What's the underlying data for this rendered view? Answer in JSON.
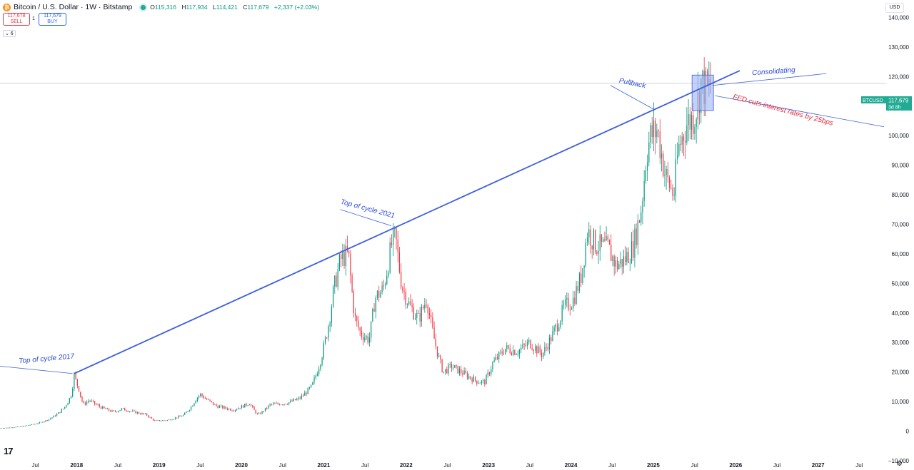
{
  "header": {
    "coin_symbol": "₿",
    "title": "Bitcoin / U.S. Dollar · 1W · Bitstamp",
    "ohlc": [
      {
        "k": "O",
        "v": "115,316"
      },
      {
        "k": "H",
        "v": "117,934"
      },
      {
        "k": "L",
        "v": "114,421"
      },
      {
        "k": "C",
        "v": "117,679"
      },
      {
        "k": "",
        "v": "+2,337 (+2.03%)"
      }
    ]
  },
  "trade": {
    "sell_price": "117,678",
    "sell_label": "SELL",
    "spread": "1",
    "buy_price": "117,679",
    "buy_label": "BUY"
  },
  "collapse_label": "⌄ 6",
  "currency": "USD",
  "logo": "17",
  "settings_icon": "gear-icon",
  "price_tag": {
    "symbol": "BTCUSD",
    "price": "117,679",
    "countdown": "3d 8h",
    "color": "#22ab94"
  },
  "colors": {
    "up": "#089981",
    "down": "#f23645",
    "line": "#3d5ee0",
    "box": "#9fb2f5"
  },
  "chart_data": {
    "type": "candlestick",
    "symbol": "BTCUSD",
    "interval": "1W",
    "y_axis": {
      "labels": [
        "140,000",
        "130,000",
        "120,000",
        "110,000",
        "100,000",
        "90,000",
        "80,000",
        "70,000",
        "60,000",
        "50,000",
        "40,000",
        "30,000",
        "20,000",
        "10,000",
        "0",
        "−10,000"
      ],
      "values": [
        140000,
        130000,
        120000,
        110000,
        100000,
        90000,
        80000,
        70000,
        60000,
        50000,
        40000,
        30000,
        20000,
        10000,
        0,
        -10000
      ],
      "range": [
        -10000,
        143000
      ]
    },
    "x_axis": {
      "ticks": [
        {
          "label": "Jul",
          "t": 2017.5,
          "year": false
        },
        {
          "label": "2018",
          "t": 2018,
          "year": true
        },
        {
          "label": "Jul",
          "t": 2018.5,
          "year": false
        },
        {
          "label": "2019",
          "t": 2019,
          "year": true
        },
        {
          "label": "Jul",
          "t": 2019.5,
          "year": false
        },
        {
          "label": "2020",
          "t": 2020,
          "year": true
        },
        {
          "label": "Jul",
          "t": 2020.5,
          "year": false
        },
        {
          "label": "2021",
          "t": 2021,
          "year": true
        },
        {
          "label": "Jul",
          "t": 2021.5,
          "year": false
        },
        {
          "label": "2022",
          "t": 2022,
          "year": true
        },
        {
          "label": "Jul",
          "t": 2022.5,
          "year": false
        },
        {
          "label": "2023",
          "t": 2023,
          "year": true
        },
        {
          "label": "Jul",
          "t": 2023.5,
          "year": false
        },
        {
          "label": "2024",
          "t": 2024,
          "year": true
        },
        {
          "label": "Jul",
          "t": 2024.5,
          "year": false
        },
        {
          "label": "2025",
          "t": 2025,
          "year": true
        },
        {
          "label": "Jul",
          "t": 2025.5,
          "year": false
        },
        {
          "label": "2026",
          "t": 2026,
          "year": true
        },
        {
          "label": "Jul",
          "t": 2026.5,
          "year": false
        },
        {
          "label": "2027",
          "t": 2027,
          "year": true
        },
        {
          "label": "Jul",
          "t": 2027.5,
          "year": false
        }
      ],
      "range": [
        2017.07,
        2027.8
      ]
    },
    "price_path": [
      [
        2017.07,
        1000
      ],
      [
        2017.3,
        1500
      ],
      [
        2017.5,
        2500
      ],
      [
        2017.62,
        3500
      ],
      [
        2017.75,
        5500
      ],
      [
        2017.85,
        8000
      ],
      [
        2017.93,
        12000
      ],
      [
        2017.97,
        19000
      ],
      [
        2018.03,
        14000
      ],
      [
        2018.08,
        9000
      ],
      [
        2018.15,
        10500
      ],
      [
        2018.3,
        8000
      ],
      [
        2018.45,
        6500
      ],
      [
        2018.55,
        7500
      ],
      [
        2018.7,
        6500
      ],
      [
        2018.85,
        5500
      ],
      [
        2018.95,
        3500
      ],
      [
        2019.1,
        3700
      ],
      [
        2019.3,
        5500
      ],
      [
        2019.45,
        11000
      ],
      [
        2019.5,
        12500
      ],
      [
        2019.7,
        8500
      ],
      [
        2019.9,
        7200
      ],
      [
        2020.1,
        9500
      ],
      [
        2020.2,
        5500
      ],
      [
        2020.35,
        9000
      ],
      [
        2020.55,
        9500
      ],
      [
        2020.7,
        11000
      ],
      [
        2020.85,
        15000
      ],
      [
        2020.95,
        23000
      ],
      [
        2021.05,
        35000
      ],
      [
        2021.12,
        48000
      ],
      [
        2021.2,
        58000
      ],
      [
        2021.3,
        60000
      ],
      [
        2021.38,
        38000
      ],
      [
        2021.45,
        33000
      ],
      [
        2021.55,
        31000
      ],
      [
        2021.62,
        45000
      ],
      [
        2021.72,
        48000
      ],
      [
        2021.82,
        63000
      ],
      [
        2021.87,
        66000
      ],
      [
        2021.95,
        49000
      ],
      [
        2022.05,
        42000
      ],
      [
        2022.15,
        38000
      ],
      [
        2022.25,
        45000
      ],
      [
        2022.35,
        30000
      ],
      [
        2022.45,
        20000
      ],
      [
        2022.55,
        22000
      ],
      [
        2022.7,
        19500
      ],
      [
        2022.85,
        17000
      ],
      [
        2022.95,
        16500
      ],
      [
        2023.05,
        23000
      ],
      [
        2023.2,
        28000
      ],
      [
        2023.35,
        27000
      ],
      [
        2023.5,
        30000
      ],
      [
        2023.65,
        26000
      ],
      [
        2023.8,
        34000
      ],
      [
        2023.92,
        42000
      ],
      [
        2024.02,
        44000
      ],
      [
        2024.12,
        52000
      ],
      [
        2024.2,
        68000
      ],
      [
        2024.3,
        63000
      ],
      [
        2024.45,
        62000
      ],
      [
        2024.55,
        56000
      ],
      [
        2024.65,
        58000
      ],
      [
        2024.75,
        62000
      ],
      [
        2024.85,
        75000
      ],
      [
        2024.92,
        95000
      ],
      [
        2024.97,
        100000
      ],
      [
        2025.05,
        102000
      ],
      [
        2025.15,
        86000
      ],
      [
        2025.25,
        80000
      ],
      [
        2025.3,
        95000
      ],
      [
        2025.4,
        104000
      ],
      [
        2025.48,
        106000
      ],
      [
        2025.53,
        110000
      ],
      [
        2025.58,
        118000
      ],
      [
        2025.65,
        115000
      ],
      [
        2025.7,
        117500
      ]
    ],
    "trendline": {
      "points": [
        [
          2017.97,
          19500
        ],
        [
          2026.05,
          122000
        ]
      ]
    },
    "lines": [
      {
        "name": "consolidating-pointer",
        "points": [
          [
            2025.72,
            117000
          ],
          [
            2027.1,
            121000
          ]
        ]
      },
      {
        "name": "fed-pointer",
        "points": [
          [
            2025.75,
            113500
          ],
          [
            2027.8,
            103000
          ]
        ]
      },
      {
        "name": "pullback-pointer",
        "points": [
          [
            2024.48,
            117000
          ],
          [
            2025.0,
            109000
          ]
        ]
      },
      {
        "name": "cycle2021-pointer",
        "points": [
          [
            2021.2,
            75000
          ],
          [
            2021.82,
            69500
          ]
        ]
      },
      {
        "name": "cycle2017-pointer",
        "points": [
          [
            2017.07,
            22000
          ],
          [
            2017.95,
            19500
          ]
        ]
      }
    ],
    "box": {
      "t0": 2025.47,
      "t1": 2025.73,
      "y0": 108500,
      "y1": 120500
    },
    "current_price": 117679,
    "annotations": [
      {
        "text": "Top of cycle 2017",
        "t": 2017.3,
        "y": 23000,
        "color": "#2a49d6",
        "rotate": -5
      },
      {
        "text": "Top of cycle 2021",
        "t": 2021.2,
        "y": 77000,
        "color": "#2a49d6",
        "rotate": 15
      },
      {
        "text": "Pullback",
        "t": 2024.58,
        "y": 118000,
        "color": "#2a49d6",
        "rotate": 12
      },
      {
        "text": "Consolidating",
        "t": 2026.2,
        "y": 120500,
        "color": "#2a49d6",
        "rotate": -4
      },
      {
        "text": "FED cuts interest rates by 25bps",
        "t": 2025.96,
        "y": 112500,
        "color": "#e12b3c",
        "rotate": 15
      }
    ]
  }
}
